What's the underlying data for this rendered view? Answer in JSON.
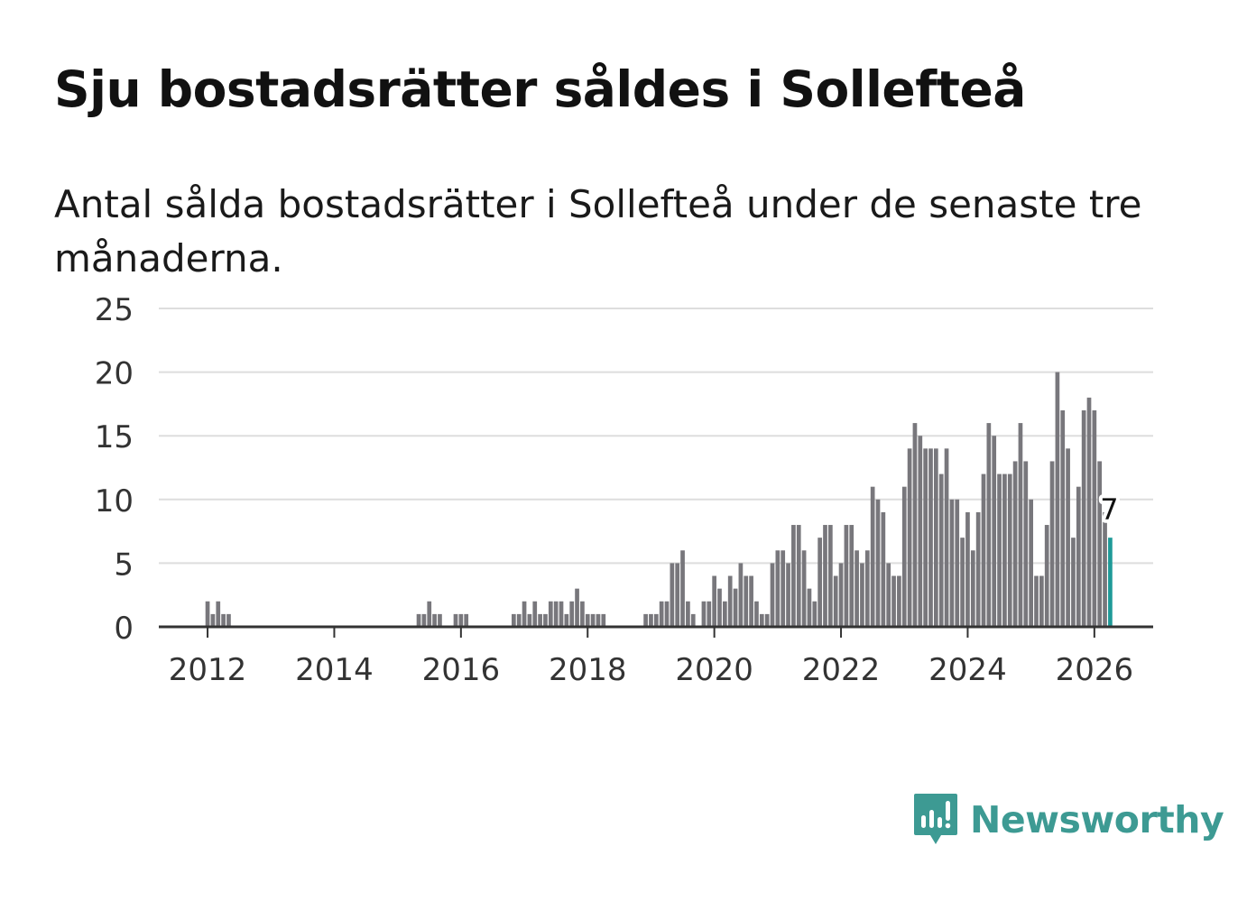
{
  "header": {
    "title": "Sju bostadsrätter såldes i Sollefteå",
    "subtitle": "Antal sålda bostadsrätter i Sollefteå under de senaste tre månaderna."
  },
  "brand": {
    "name": "Newsworthy",
    "logo_icon": "newsworthy-bar-chart-icon"
  },
  "colors": {
    "bar": "#78777c",
    "highlight": "#1f9a98",
    "grid": "#dddddd",
    "axis": "#333333",
    "tick_text": "#333333",
    "brand": "#3d9a93"
  },
  "chart_data": {
    "type": "bar",
    "title": "Sju bostadsrätter såldes i Sollefteå",
    "xlabel": "",
    "ylabel": "",
    "x_start": "2011-10",
    "interval": "month",
    "ylim": [
      0,
      25
    ],
    "yticks": [
      0,
      5,
      10,
      15,
      20,
      25
    ],
    "xticks": [
      {
        "label": "2012",
        "month_index": 3
      },
      {
        "label": "2014",
        "month_index": 27
      },
      {
        "label": "2016",
        "month_index": 51
      },
      {
        "label": "2018",
        "month_index": 75
      },
      {
        "label": "2020",
        "month_index": 99
      },
      {
        "label": "2022",
        "month_index": 123
      },
      {
        "label": "2024",
        "month_index": 147
      },
      {
        "label": "2026",
        "month_index": 171
      }
    ],
    "grid": true,
    "series": [
      {
        "name": "Sålda bostadsrätter",
        "values": [
          0,
          0,
          0,
          2,
          1,
          2,
          1,
          1,
          0,
          0,
          0,
          0,
          0,
          0,
          0,
          0,
          0,
          0,
          0,
          0,
          0,
          0,
          0,
          0,
          0,
          0,
          0,
          0,
          0,
          0,
          0,
          0,
          0,
          0,
          0,
          0,
          0,
          0,
          0,
          0,
          0,
          0,
          0,
          1,
          1,
          2,
          1,
          1,
          0,
          0,
          1,
          1,
          1,
          0,
          0,
          0,
          0,
          0,
          0,
          0,
          0,
          1,
          1,
          2,
          1,
          2,
          1,
          1,
          2,
          2,
          2,
          1,
          2,
          3,
          2,
          1,
          1,
          1,
          1,
          0,
          0,
          0,
          0,
          0,
          0,
          0,
          1,
          1,
          1,
          2,
          2,
          5,
          5,
          6,
          2,
          1,
          0,
          2,
          2,
          4,
          3,
          2,
          4,
          3,
          5,
          4,
          4,
          2,
          1,
          1,
          5,
          6,
          6,
          5,
          8,
          8,
          6,
          3,
          2,
          7,
          8,
          8,
          4,
          5,
          8,
          8,
          6,
          5,
          6,
          11,
          10,
          9,
          5,
          4,
          4,
          11,
          14,
          16,
          15,
          14,
          14,
          14,
          12,
          14,
          10,
          10,
          7,
          9,
          6,
          9,
          12,
          16,
          15,
          12,
          12,
          12,
          13,
          16,
          13,
          10,
          4,
          4,
          8,
          13,
          20,
          17,
          14,
          7,
          11,
          17,
          18,
          17,
          13,
          9,
          7
        ]
      }
    ],
    "highlight": {
      "index": 174,
      "value": 7,
      "label": "7"
    }
  }
}
